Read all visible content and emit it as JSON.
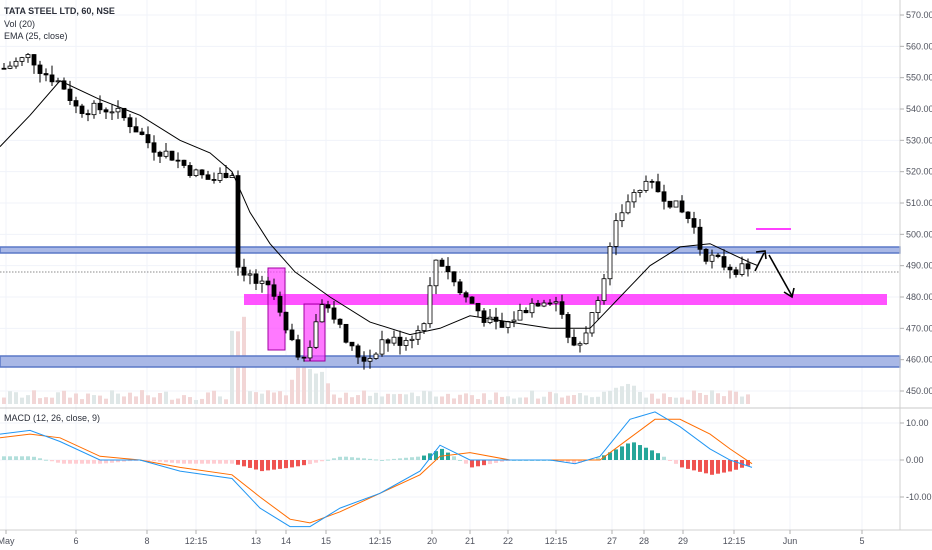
{
  "header": {
    "symbol_line": "TATA STEEL LTD, 60, NSE",
    "vol_line": "Vol (20)",
    "ema_line": "EMA (25, close)"
  },
  "macd_panel": {
    "legend": "MACD (12, 26, close, 9)"
  },
  "colors": {
    "candle": "#000000",
    "ema": "#000000",
    "support_band": "#5b78c7",
    "support_fill": "#a9b8e6",
    "pink_zone": "#ff40ff",
    "magenta_box": "#b000b0",
    "volume": "#d8d8d8",
    "macd_line": "#2196f3",
    "signal_line": "#ff6d00",
    "hist_pos_strong": "#26a69a",
    "hist_pos_weak": "#b2dfdb",
    "hist_neg_strong": "#ef5350",
    "hist_neg_weak": "#ffcdd2"
  },
  "chart_data": [
    {
      "type": "candlestick",
      "title": "TATA STEEL LTD, 60, NSE",
      "y_ticks": [
        "570.00",
        "560.00",
        "550.00",
        "540.00",
        "530.00",
        "520.00",
        "510.00",
        "500.00",
        "490.00",
        "480.00",
        "470.00",
        "460.00",
        "450.00"
      ],
      "ylim": [
        444,
        572
      ],
      "x_ticks": [
        "May",
        "6",
        "8",
        "12:15",
        "13",
        "14",
        "15",
        "12:15",
        "20",
        "21",
        "22",
        "12:15",
        "27",
        "28",
        "29",
        "12:15",
        "Jun",
        "5"
      ],
      "series": [
        {
          "name": "EMA (25, close)",
          "points": [
            [
              0,
              528
            ],
            [
              30,
              538
            ],
            [
              60,
              549
            ],
            [
              100,
              543
            ],
            [
              140,
              538
            ],
            [
              180,
              530
            ],
            [
              210,
              526
            ],
            [
              232,
              520
            ],
            [
              250,
              507
            ],
            [
              270,
              497
            ],
            [
              295,
              488
            ],
            [
              330,
              480
            ],
            [
              370,
              472
            ],
            [
              410,
              468
            ],
            [
              440,
              470
            ],
            [
              470,
              474
            ],
            [
              510,
              472
            ],
            [
              550,
              470
            ],
            [
              590,
              470
            ],
            [
              620,
              480
            ],
            [
              650,
              490
            ],
            [
              680,
              496
            ],
            [
              710,
              497
            ],
            [
              750,
              491
            ],
            [
              758,
              490
            ]
          ]
        }
      ],
      "zones": [
        {
          "label": "support band upper",
          "from": 494,
          "to": 496
        },
        {
          "label": "support band lower",
          "from": 457,
          "to": 461
        },
        {
          "label": "pink zone",
          "from": 478,
          "to": 481
        }
      ]
    },
    {
      "type": "histogram+line",
      "title": "MACD (12, 26, close, 9)",
      "y_ticks": [
        "10.00",
        "0.00",
        "-10.00"
      ],
      "ylim": [
        -20,
        13
      ],
      "series": [
        {
          "name": "MACD",
          "points": [
            [
              0,
              7
            ],
            [
              30,
              8
            ],
            [
              60,
              5
            ],
            [
              100,
              0
            ],
            [
              140,
              0
            ],
            [
              180,
              -3
            ],
            [
              232,
              -5
            ],
            [
              260,
              -13
            ],
            [
              290,
              -18
            ],
            [
              310,
              -18
            ],
            [
              340,
              -13
            ],
            [
              380,
              -9
            ],
            [
              420,
              -3
            ],
            [
              440,
              4
            ],
            [
              470,
              0
            ],
            [
              510,
              0
            ],
            [
              550,
              0
            ],
            [
              575,
              -1
            ],
            [
              600,
              1
            ],
            [
              630,
              11
            ],
            [
              655,
              13
            ],
            [
              680,
              9
            ],
            [
              710,
              3
            ],
            [
              730,
              0
            ],
            [
              752,
              -2
            ]
          ]
        },
        {
          "name": "Signal",
          "points": [
            [
              0,
              6
            ],
            [
              30,
              7
            ],
            [
              60,
              6
            ],
            [
              100,
              1
            ],
            [
              140,
              0
            ],
            [
              180,
              -2
            ],
            [
              232,
              -4
            ],
            [
              260,
              -10
            ],
            [
              290,
              -16
            ],
            [
              310,
              -17
            ],
            [
              340,
              -14
            ],
            [
              380,
              -9
            ],
            [
              420,
              -4
            ],
            [
              440,
              1
            ],
            [
              470,
              2
            ],
            [
              510,
              0
            ],
            [
              550,
              0
            ],
            [
              575,
              0
            ],
            [
              600,
              0
            ],
            [
              630,
              6
            ],
            [
              655,
              11
            ],
            [
              680,
              11
            ],
            [
              710,
              7
            ],
            [
              730,
              3
            ],
            [
              752,
              -1
            ]
          ]
        }
      ]
    }
  ]
}
